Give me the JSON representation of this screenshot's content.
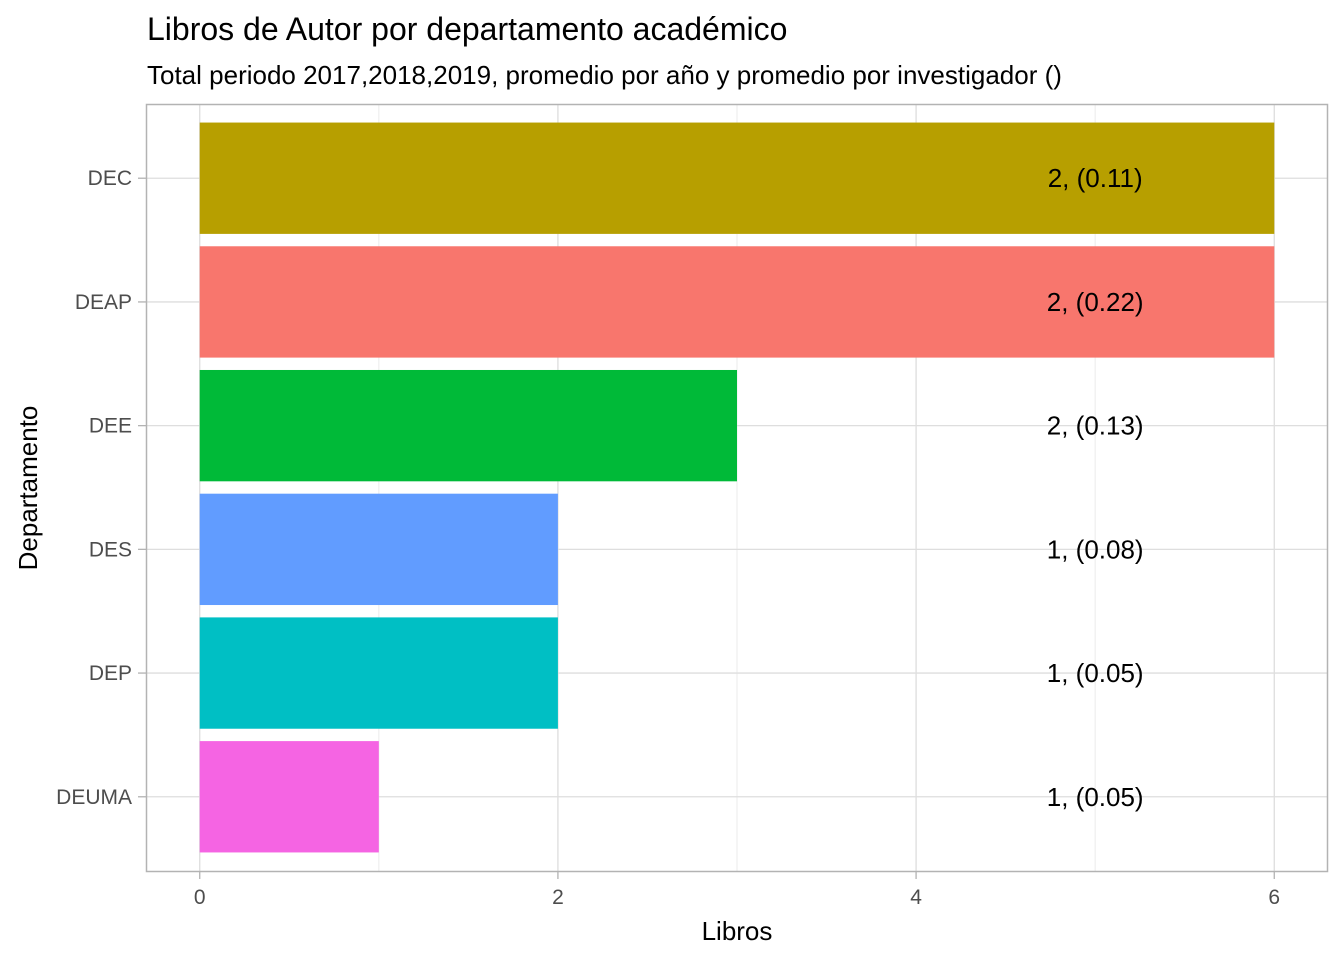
{
  "chart_data": {
    "type": "bar",
    "orientation": "horizontal",
    "title": "Libros de Autor por departamento académico",
    "subtitle": "Total periodo 2017,2018,2019, promedio por año y promedio por investigador ()",
    "xlabel": "Libros",
    "ylabel": "Departamento",
    "xlim": [
      -0.3,
      6.3
    ],
    "x_ticks": [
      0,
      2,
      4,
      6
    ],
    "x_tick_labels": [
      "0",
      "2",
      "4",
      "6"
    ],
    "grid": true,
    "legend": "none",
    "label_position_x": 5,
    "categories": [
      "DEC",
      "DEAP",
      "DEE",
      "DES",
      "DEP",
      "DEUMA"
    ],
    "values": [
      6,
      6,
      3,
      2,
      2,
      1
    ],
    "labels": [
      "2, (0.11)",
      "2, (0.22)",
      "2, (0.13)",
      "1, (0.08)",
      "1, (0.05)",
      "1, (0.05)"
    ],
    "colors": [
      "#B79F00",
      "#F8766D",
      "#00BA38",
      "#619CFF",
      "#00BFC4",
      "#F564E3"
    ]
  }
}
